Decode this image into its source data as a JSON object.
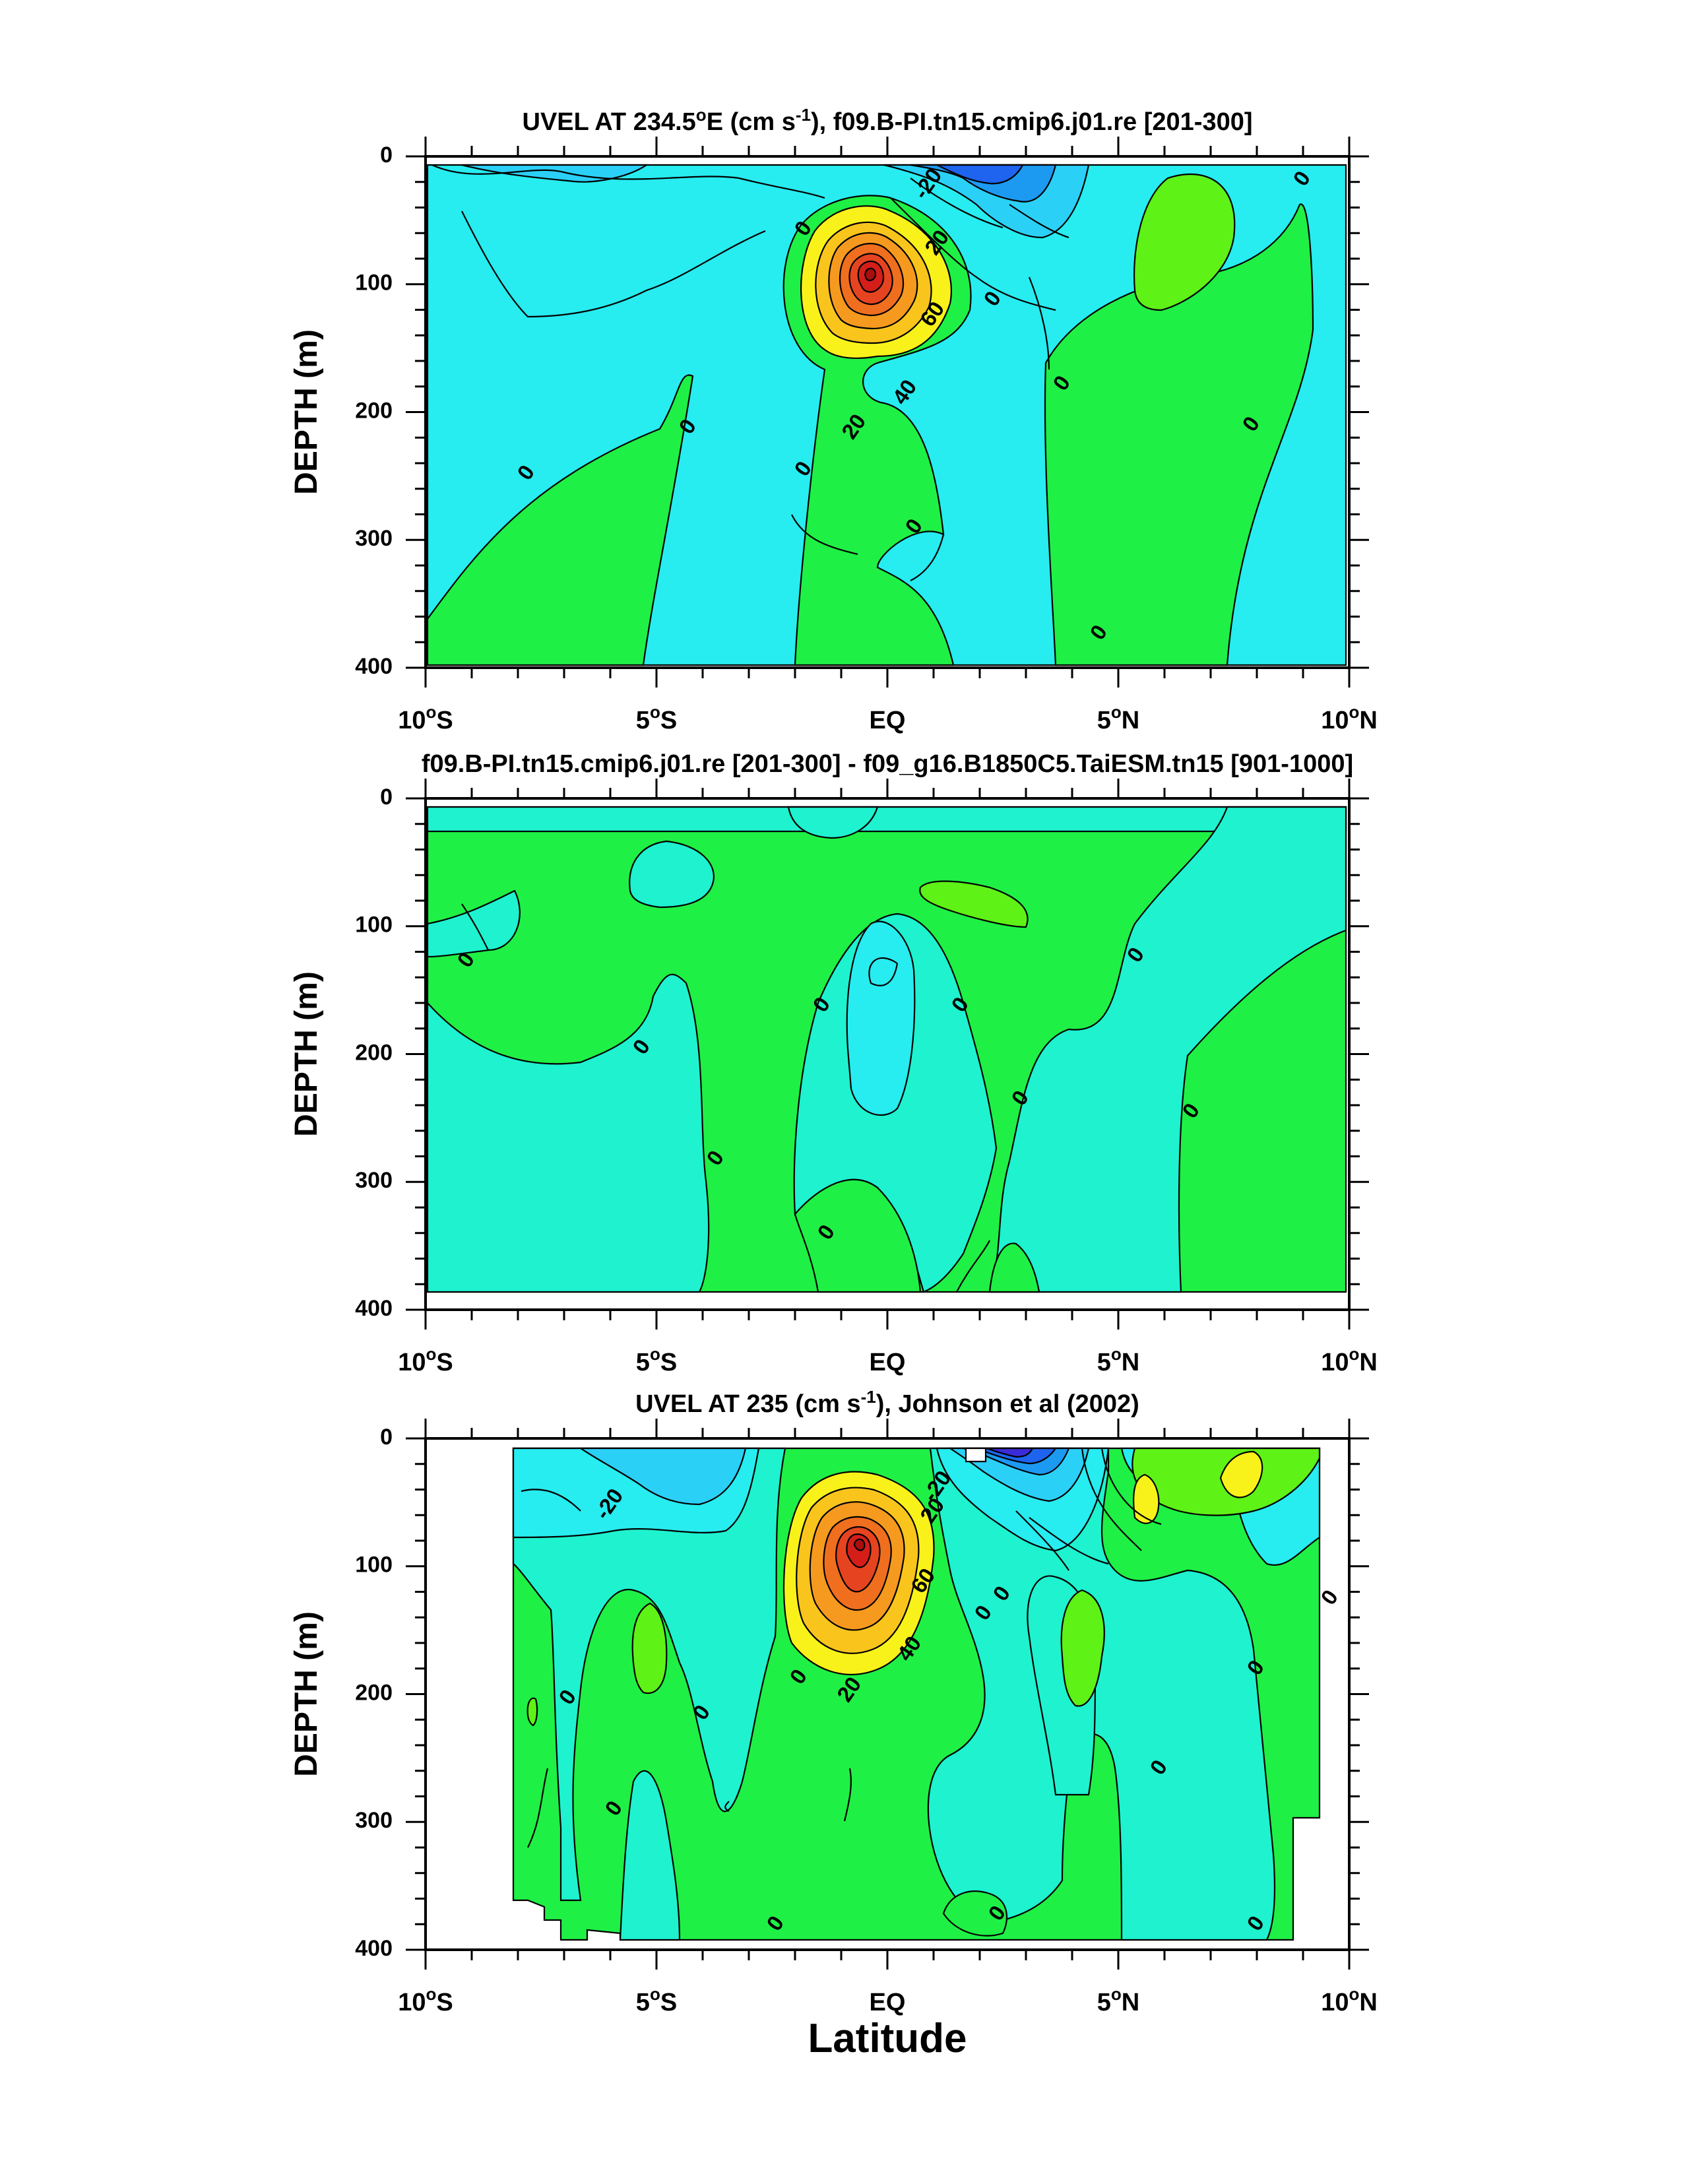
{
  "figure": {
    "x_axis_label": "Latitude"
  },
  "chart_data": [
    {
      "type": "contour",
      "title": "UVEL AT 234.5°E (cm s-1), f09.B-PI.tn15.cmip6.j01.re [201-300]",
      "title_parts": {
        "pre": "UVEL AT 234.5",
        "deg": "o",
        "mid": "E (cm s",
        "sup": "-1",
        "post": "), f09.B-PI.tn15.cmip6.j01.re [201-300]"
      },
      "ylabel": "DEPTH (m)",
      "xlabel": "",
      "x_ticks": [
        "10°S",
        "5°S",
        "EQ",
        "5°N",
        "10°N"
      ],
      "x_tick_values": [
        -10,
        -5,
        0,
        5,
        10
      ],
      "y_ticks": [
        "0",
        "100",
        "200",
        "300",
        "400"
      ],
      "y_tick_values": [
        0,
        100,
        200,
        300,
        400
      ],
      "xlim": [
        -10,
        10
      ],
      "ylim": [
        0,
        400
      ],
      "y_inverted": true,
      "contour_interval": 5,
      "contour_labels": [
        {
          "text": "-20",
          "lat": 0.9,
          "depth": 22
        },
        {
          "text": "20",
          "lat": 1.1,
          "depth": 68
        },
        {
          "text": "0",
          "lat": 2.3,
          "depth": 112
        },
        {
          "text": "60",
          "lat": 1.0,
          "depth": 124
        },
        {
          "text": "40",
          "lat": 0.4,
          "depth": 185
        },
        {
          "text": "20",
          "lat": -0.7,
          "depth": 212
        },
        {
          "text": "0",
          "lat": -1.8,
          "depth": 57
        },
        {
          "text": "0",
          "lat": -7.8,
          "depth": 248
        },
        {
          "text": "0",
          "lat": -4.3,
          "depth": 212
        },
        {
          "text": "0",
          "lat": -1.8,
          "depth": 245
        },
        {
          "text": "0",
          "lat": 0.6,
          "depth": 290
        },
        {
          "text": "0",
          "lat": 3.8,
          "depth": 178
        },
        {
          "text": "0",
          "lat": 4.6,
          "depth": 373
        },
        {
          "text": "0",
          "lat": 7.9,
          "depth": 210
        },
        {
          "text": "0",
          "lat": 9.0,
          "depth": 18
        }
      ]
    },
    {
      "type": "contour",
      "title": "f09.B-PI.tn15.cmip6.j01.re [201-300] - f09_g16.B1850C5.TaiESM.tn15 [901-1000]",
      "ylabel": "DEPTH (m)",
      "xlabel": "",
      "x_ticks": [
        "10°S",
        "5°S",
        "EQ",
        "5°N",
        "10°N"
      ],
      "x_tick_values": [
        -10,
        -5,
        0,
        5,
        10
      ],
      "y_ticks": [
        "0",
        "100",
        "200",
        "300",
        "400"
      ],
      "y_tick_values": [
        0,
        100,
        200,
        300,
        400
      ],
      "xlim": [
        -10,
        10
      ],
      "ylim": [
        0,
        400
      ],
      "y_inverted": true,
      "contour_labels": [
        {
          "text": "0",
          "lat": -9.1,
          "depth": 127
        },
        {
          "text": "0",
          "lat": -5.3,
          "depth": 195
        },
        {
          "text": "0",
          "lat": -3.7,
          "depth": 282
        },
        {
          "text": "0",
          "lat": -1.4,
          "depth": 162
        },
        {
          "text": "0",
          "lat": 1.6,
          "depth": 162
        },
        {
          "text": "0",
          "lat": -1.3,
          "depth": 340
        },
        {
          "text": "0",
          "lat": 2.9,
          "depth": 235
        },
        {
          "text": "0",
          "lat": 5.4,
          "depth": 123
        },
        {
          "text": "0",
          "lat": 6.6,
          "depth": 245
        }
      ]
    },
    {
      "type": "contour",
      "title": "UVEL AT 235 (cm s-1), Johnson et al (2002)",
      "title_parts": {
        "pre": "UVEL AT 235 (cm s",
        "sup": "-1",
        "post": "), Johnson et al (2002)"
      },
      "ylabel": "DEPTH (m)",
      "xlabel": "Latitude",
      "x_ticks": [
        "10°S",
        "5°S",
        "EQ",
        "5°N",
        "10°N"
      ],
      "x_tick_values": [
        -10,
        -5,
        0,
        5,
        10
      ],
      "y_ticks": [
        "0",
        "100",
        "200",
        "300",
        "400"
      ],
      "y_tick_values": [
        0,
        100,
        200,
        300,
        400
      ],
      "xlim": [
        -10,
        10
      ],
      "ylim": [
        0,
        400
      ],
      "y_inverted": true,
      "contour_labels": [
        {
          "text": "-20",
          "lat": -6.0,
          "depth": 52
        },
        {
          "text": "-20",
          "lat": 1.1,
          "depth": 38
        },
        {
          "text": "20",
          "lat": 1.0,
          "depth": 57
        },
        {
          "text": "60",
          "lat": 0.8,
          "depth": 112
        },
        {
          "text": "40",
          "lat": 0.5,
          "depth": 165
        },
        {
          "text": "20",
          "lat": -0.8,
          "depth": 197
        },
        {
          "text": "0",
          "lat": -1.9,
          "depth": 187
        },
        {
          "text": "0",
          "lat": 2.1,
          "depth": 137
        },
        {
          "text": "0",
          "lat": 2.5,
          "depth": 122
        },
        {
          "text": "0",
          "lat": -6.9,
          "depth": 203
        },
        {
          "text": "0",
          "lat": -4.0,
          "depth": 215
        },
        {
          "text": "0",
          "lat": -5.9,
          "depth": 290
        },
        {
          "text": "0",
          "lat": -2.4,
          "depth": 380
        },
        {
          "text": "0",
          "lat": 2.4,
          "depth": 372
        },
        {
          "text": "0",
          "lat": 5.9,
          "depth": 258
        },
        {
          "text": "0",
          "lat": 8.0,
          "depth": 180
        },
        {
          "text": "0",
          "lat": 9.6,
          "depth": 125
        },
        {
          "text": "0",
          "lat": 8.0,
          "depth": 380
        }
      ]
    }
  ]
}
